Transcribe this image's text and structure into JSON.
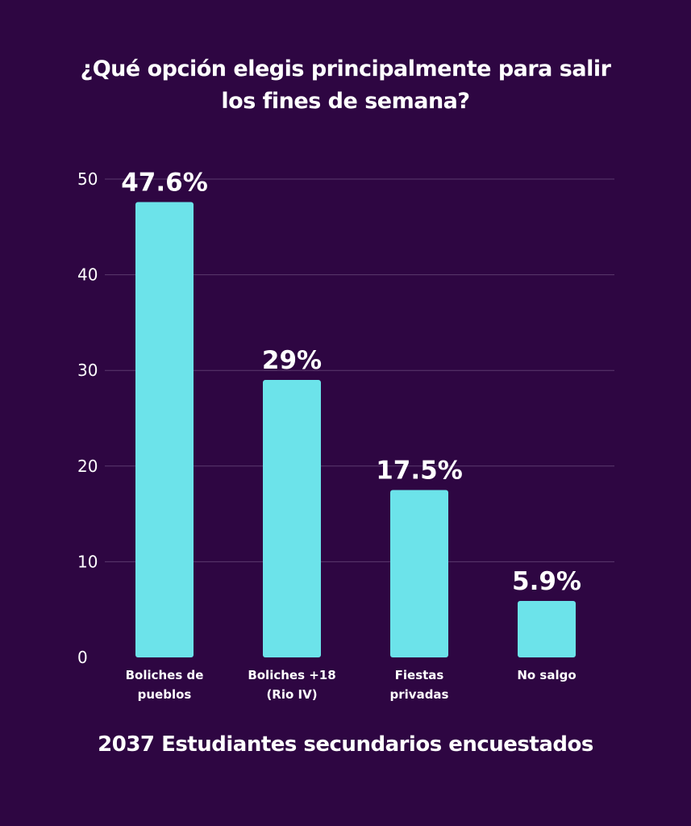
{
  "chart_data": {
    "type": "bar",
    "title_lines": [
      "¿Qué opción elegis principalmente para salir",
      "los fines de semana?"
    ],
    "categories": [
      [
        "Boliches de",
        "pueblos"
      ],
      [
        "Boliches +18",
        "(Rio IV)"
      ],
      [
        "Fiestas",
        "privadas"
      ],
      [
        "No salgo"
      ]
    ],
    "values": [
      47.6,
      29,
      17.5,
      5.9
    ],
    "value_labels": [
      "47.6%",
      "29%",
      "17.5%",
      "5.9%"
    ],
    "yticks": [
      0,
      10,
      20,
      30,
      40,
      50
    ],
    "ylim": [
      0,
      50
    ],
    "grid": true,
    "colors": {
      "bar": "#6ce3ea",
      "background": "#2e0642",
      "grid": "#5b3a6e",
      "text": "#ffffff"
    }
  },
  "footer": "2037 Estudiantes secundarios encuestados"
}
